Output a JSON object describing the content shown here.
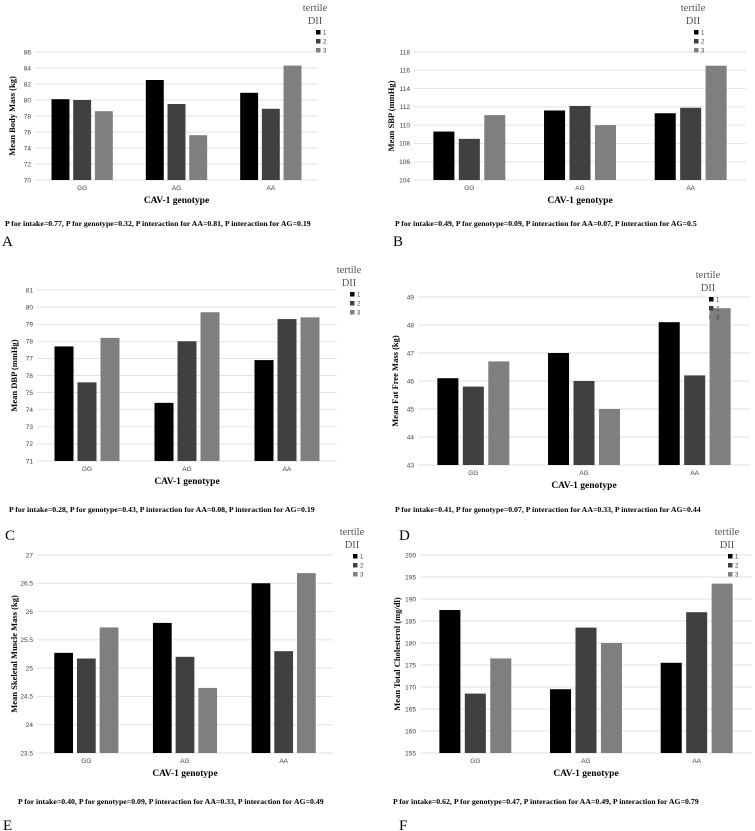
{
  "legend_title": [
    "tertile",
    "DII"
  ],
  "legend_labels": [
    "1",
    "2",
    "3"
  ],
  "colors": [
    "#000000",
    "#404040",
    "#7f7f7f"
  ],
  "chart_data": [
    {
      "type": "bar",
      "letter": "A",
      "ylabel": "Mean Body Mass (kg)",
      "xlabel": "CAV-1 genotype",
      "categories": [
        "GG",
        "AG",
        "AA"
      ],
      "ylim": [
        70,
        86
      ],
      "yticks": [
        70,
        72,
        74,
        76,
        78,
        80,
        82,
        84,
        86
      ],
      "series": [
        {
          "name": "1",
          "values": [
            80.1,
            82.5,
            80.9
          ]
        },
        {
          "name": "2",
          "values": [
            80.0,
            79.5,
            78.9
          ]
        },
        {
          "name": "3",
          "values": [
            78.6,
            75.6,
            84.3
          ]
        }
      ],
      "note": "P for intake=0.77, P for genotype=0.32, P interaction for AA=0.81, P interaction for AG=0.19"
    },
    {
      "type": "bar",
      "letter": "B",
      "ylabel": "Mean SBP (mmHg)",
      "xlabel": "CAV-1 genotype",
      "categories": [
        "GG",
        "AG",
        "AA"
      ],
      "ylim": [
        104,
        118
      ],
      "yticks": [
        104,
        106,
        108,
        110,
        112,
        114,
        116,
        118
      ],
      "series": [
        {
          "name": "1",
          "values": [
            109.3,
            111.6,
            111.3
          ]
        },
        {
          "name": "2",
          "values": [
            108.5,
            112.1,
            111.9
          ]
        },
        {
          "name": "3",
          "values": [
            111.1,
            110.0,
            116.5
          ]
        }
      ],
      "note": "P for intake=0.49, P for genotype=0.09, P interaction for AA=0.07, P interaction for AG=0.5"
    },
    {
      "type": "bar",
      "letter": "C",
      "ylabel": "Mean DBP (mmHg)",
      "xlabel": "CAV-1 genotype",
      "categories": [
        "GG",
        "AG",
        "AA"
      ],
      "ylim": [
        71,
        81
      ],
      "yticks": [
        71,
        72,
        73,
        74,
        75,
        76,
        77,
        78,
        79,
        80,
        81
      ],
      "series": [
        {
          "name": "1",
          "values": [
            77.7,
            74.4,
            76.9
          ]
        },
        {
          "name": "2",
          "values": [
            75.6,
            78.0,
            79.3
          ]
        },
        {
          "name": "3",
          "values": [
            78.2,
            79.7,
            79.4
          ]
        }
      ],
      "note": "P for intake=0.28, P for genotype=0.43, P interaction for AA=0.08, P interaction for AG=0.19"
    },
    {
      "type": "bar",
      "letter": "D",
      "ylabel": "Mean Fat Free Mass (kg)",
      "xlabel": "CAV-1 genotype",
      "categories": [
        "GG",
        "AG",
        "AA"
      ],
      "ylim": [
        43,
        49
      ],
      "yticks": [
        43,
        44,
        45,
        46,
        47,
        48,
        49
      ],
      "series": [
        {
          "name": "1",
          "values": [
            46.1,
            47.0,
            48.1
          ]
        },
        {
          "name": "2",
          "values": [
            45.8,
            46.0,
            46.2
          ]
        },
        {
          "name": "3",
          "values": [
            46.7,
            45.0,
            48.6
          ]
        }
      ],
      "note": "P for intake=0.41, P for genotype=0.07, P interaction for AA=0.33, P interaction for AG=0.44"
    },
    {
      "type": "bar",
      "letter": "E",
      "ylabel": "Mean Skeletal Muscle Mass (kg)",
      "xlabel": "CAV-1 genotype",
      "categories": [
        "GG",
        "AG",
        "AA"
      ],
      "ylim": [
        23.5,
        27
      ],
      "yticks": [
        23.5,
        24,
        24.5,
        25,
        25.5,
        26,
        26.5,
        27
      ],
      "series": [
        {
          "name": "1",
          "values": [
            25.27,
            25.8,
            26.5
          ]
        },
        {
          "name": "2",
          "values": [
            25.17,
            25.2,
            25.3
          ]
        },
        {
          "name": "3",
          "values": [
            25.72,
            24.65,
            26.68
          ]
        }
      ],
      "note": "P for intake=0.40, P for genotype=0.09, P interaction for AA=0.33, P interaction for AG=0.49"
    },
    {
      "type": "bar",
      "letter": "F",
      "ylabel": "Mean Total Cholesterol (mg/dl)",
      "xlabel": "CAV-1 genotype",
      "categories": [
        "GG",
        "AG",
        "AA"
      ],
      "ylim": [
        155,
        200
      ],
      "yticks": [
        155,
        160,
        165,
        170,
        175,
        180,
        185,
        190,
        195,
        200
      ],
      "series": [
        {
          "name": "1",
          "values": [
            187.5,
            169.5,
            175.5
          ]
        },
        {
          "name": "2",
          "values": [
            168.5,
            183.5,
            187.0
          ]
        },
        {
          "name": "3",
          "values": [
            176.5,
            180.0,
            193.5
          ]
        }
      ],
      "note": "P for intake=0.62, P for genotype=0.47, P interaction for AA=0.49, P interaction for AG=0.79"
    }
  ]
}
